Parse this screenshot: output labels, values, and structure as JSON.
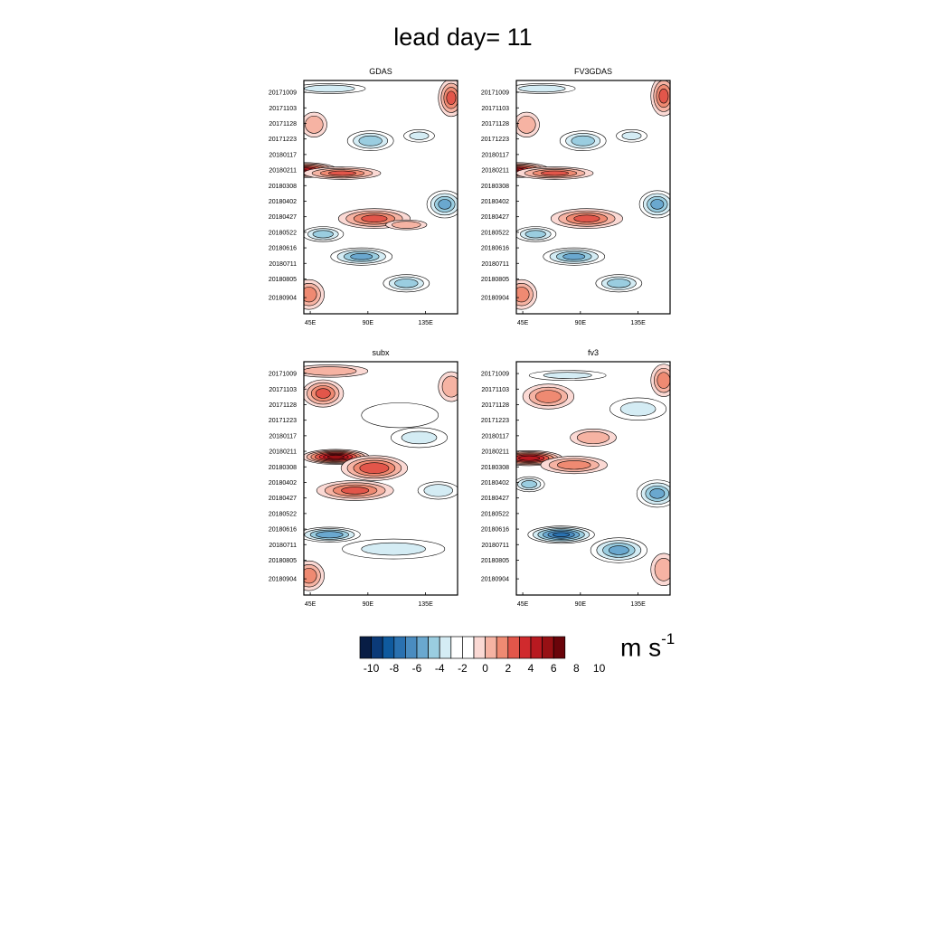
{
  "title": "lead day= 11",
  "units": {
    "base": "m s",
    "exponent": "-1"
  },
  "chart_data": [
    {
      "type": "heatmap",
      "title": "GDAS",
      "x_ticks": [
        "45E",
        "90E",
        "135E"
      ],
      "x_tick_values": [
        45,
        90,
        135
      ],
      "xlim": [
        40,
        160
      ],
      "y_ticks": [
        "20171009",
        "20171103",
        "20171128",
        "20171223",
        "20180117",
        "20180211",
        "20180308",
        "20180402",
        "20180427",
        "20180522",
        "20180616",
        "20180711",
        "20180805",
        "20180904"
      ],
      "ylim": [
        "20170920",
        "20180930"
      ],
      "features": [
        {
          "lon": 40,
          "date": "20180211",
          "value": 9.5,
          "lon_width": 26,
          "day_width": 12
        },
        {
          "lon": 70,
          "date": "20180216",
          "value": 6,
          "lon_width": 30,
          "day_width": 10
        },
        {
          "lon": 95,
          "date": "20180430",
          "value": 6,
          "lon_width": 28,
          "day_width": 16
        },
        {
          "lon": 120,
          "date": "20180510",
          "value": 4,
          "lon_width": 16,
          "day_width": 8
        },
        {
          "lon": 155,
          "date": "20171018",
          "value": 6,
          "lon_width": 10,
          "day_width": 30
        },
        {
          "lon": 48,
          "date": "20171130",
          "value": 4,
          "lon_width": 10,
          "day_width": 20
        },
        {
          "lon": 44,
          "date": "20180830",
          "value": 5,
          "lon_width": 12,
          "day_width": 24
        },
        {
          "lon": 60,
          "date": "20171003",
          "value": -4,
          "lon_width": 28,
          "day_width": 8
        },
        {
          "lon": 92,
          "date": "20171226",
          "value": -5,
          "lon_width": 18,
          "day_width": 16
        },
        {
          "lon": 150,
          "date": "20180407",
          "value": -6,
          "lon_width": 14,
          "day_width": 22
        },
        {
          "lon": 55,
          "date": "20180525",
          "value": -5,
          "lon_width": 16,
          "day_width": 12
        },
        {
          "lon": 85,
          "date": "20180630",
          "value": -6,
          "lon_width": 24,
          "day_width": 14
        },
        {
          "lon": 120,
          "date": "20180812",
          "value": -5,
          "lon_width": 18,
          "day_width": 14
        },
        {
          "lon": 130,
          "date": "20171218",
          "value": -3,
          "lon_width": 12,
          "day_width": 10
        }
      ]
    },
    {
      "type": "heatmap",
      "title": "FV3GDAS",
      "x_ticks": [
        "45E",
        "90E",
        "135E"
      ],
      "x_tick_values": [
        45,
        90,
        135
      ],
      "xlim": [
        40,
        160
      ],
      "y_ticks": [
        "20171009",
        "20171103",
        "20171128",
        "20171223",
        "20180117",
        "20180211",
        "20180308",
        "20180402",
        "20180427",
        "20180522",
        "20180616",
        "20180711",
        "20180805",
        "20180904"
      ],
      "ylim": [
        "20170920",
        "20180930"
      ],
      "features": [
        {
          "lon": 40,
          "date": "20180211",
          "value": 9,
          "lon_width": 26,
          "day_width": 12
        },
        {
          "lon": 70,
          "date": "20180216",
          "value": 6,
          "lon_width": 30,
          "day_width": 10
        },
        {
          "lon": 95,
          "date": "20180430",
          "value": 6,
          "lon_width": 28,
          "day_width": 16
        },
        {
          "lon": 155,
          "date": "20171015",
          "value": 6,
          "lon_width": 10,
          "day_width": 32
        },
        {
          "lon": 48,
          "date": "20171130",
          "value": 4,
          "lon_width": 10,
          "day_width": 20
        },
        {
          "lon": 44,
          "date": "20180830",
          "value": 5,
          "lon_width": 12,
          "day_width": 24
        },
        {
          "lon": 60,
          "date": "20171003",
          "value": -4,
          "lon_width": 26,
          "day_width": 8
        },
        {
          "lon": 92,
          "date": "20171226",
          "value": -5,
          "lon_width": 18,
          "day_width": 16
        },
        {
          "lon": 150,
          "date": "20180407",
          "value": -6,
          "lon_width": 14,
          "day_width": 22
        },
        {
          "lon": 55,
          "date": "20180525",
          "value": -5,
          "lon_width": 16,
          "day_width": 12
        },
        {
          "lon": 85,
          "date": "20180630",
          "value": -6,
          "lon_width": 24,
          "day_width": 14
        },
        {
          "lon": 120,
          "date": "20180812",
          "value": -5,
          "lon_width": 18,
          "day_width": 14
        },
        {
          "lon": 130,
          "date": "20171218",
          "value": -3,
          "lon_width": 12,
          "day_width": 10
        }
      ]
    },
    {
      "type": "heatmap",
      "title": "subx",
      "x_ticks": [
        "45E",
        "90E",
        "135E"
      ],
      "x_tick_values": [
        45,
        90,
        135
      ],
      "xlim": [
        40,
        160
      ],
      "y_ticks": [
        "20171009",
        "20171103",
        "20171128",
        "20171223",
        "20180117",
        "20180211",
        "20180308",
        "20180402",
        "20180427",
        "20180522",
        "20180616",
        "20180711",
        "20180805",
        "20180904"
      ],
      "ylim": [
        "20170920",
        "20180930"
      ],
      "features": [
        {
          "lon": 65,
          "date": "20180220",
          "value": 11,
          "lon_width": 26,
          "day_width": 12
        },
        {
          "lon": 95,
          "date": "20180310",
          "value": 7,
          "lon_width": 26,
          "day_width": 20
        },
        {
          "lon": 80,
          "date": "20180415",
          "value": 6,
          "lon_width": 30,
          "day_width": 16
        },
        {
          "lon": 55,
          "date": "20171110",
          "value": 6,
          "lon_width": 16,
          "day_width": 22
        },
        {
          "lon": 60,
          "date": "20171005",
          "value": 4,
          "lon_width": 30,
          "day_width": 10
        },
        {
          "lon": 155,
          "date": "20171030",
          "value": 4,
          "lon_width": 10,
          "day_width": 24
        },
        {
          "lon": 44,
          "date": "20180830",
          "value": 5,
          "lon_width": 12,
          "day_width": 24
        },
        {
          "lon": 115,
          "date": "20171215",
          "value": -2.5,
          "lon_width": 30,
          "day_width": 20
        },
        {
          "lon": 130,
          "date": "20180120",
          "value": -3,
          "lon_width": 22,
          "day_width": 16
        },
        {
          "lon": 145,
          "date": "20180415",
          "value": -4,
          "lon_width": 16,
          "day_width": 14
        },
        {
          "lon": 60,
          "date": "20180625",
          "value": -7,
          "lon_width": 24,
          "day_width": 12
        },
        {
          "lon": 110,
          "date": "20180718",
          "value": -3,
          "lon_width": 40,
          "day_width": 16
        }
      ]
    },
    {
      "type": "heatmap",
      "title": "fv3",
      "x_ticks": [
        "45E",
        "90E",
        "135E"
      ],
      "x_tick_values": [
        45,
        90,
        135
      ],
      "xlim": [
        40,
        160
      ],
      "y_ticks": [
        "20171009",
        "20171103",
        "20171128",
        "20171223",
        "20180117",
        "20180211",
        "20180308",
        "20180402",
        "20180427",
        "20180522",
        "20180616",
        "20180711",
        "20180805",
        "20180904"
      ],
      "ylim": [
        "20170920",
        "20180930"
      ],
      "features": [
        {
          "lon": 50,
          "date": "20180222",
          "value": 10,
          "lon_width": 26,
          "day_width": 12
        },
        {
          "lon": 85,
          "date": "20180305",
          "value": 5,
          "lon_width": 26,
          "day_width": 14
        },
        {
          "lon": 65,
          "date": "20171115",
          "value": 5,
          "lon_width": 20,
          "day_width": 20
        },
        {
          "lon": 100,
          "date": "20180120",
          "value": 4,
          "lon_width": 18,
          "day_width": 14
        },
        {
          "lon": 155,
          "date": "20171020",
          "value": 5,
          "lon_width": 10,
          "day_width": 26
        },
        {
          "lon": 155,
          "date": "20180820",
          "value": 4,
          "lon_width": 10,
          "day_width": 26
        },
        {
          "lon": 80,
          "date": "20171012",
          "value": -3,
          "lon_width": 30,
          "day_width": 8
        },
        {
          "lon": 135,
          "date": "20171205",
          "value": -3,
          "lon_width": 22,
          "day_width": 18
        },
        {
          "lon": 150,
          "date": "20180420",
          "value": -6,
          "lon_width": 16,
          "day_width": 22
        },
        {
          "lon": 50,
          "date": "20180405",
          "value": -5,
          "lon_width": 12,
          "day_width": 12
        },
        {
          "lon": 75,
          "date": "20180625",
          "value": -9,
          "lon_width": 26,
          "day_width": 14
        },
        {
          "lon": 120,
          "date": "20180720",
          "value": -6,
          "lon_width": 22,
          "day_width": 20
        }
      ]
    }
  ],
  "colorbar": {
    "labels": [
      "-10",
      "-8",
      "-6",
      "-4",
      "-2",
      "0",
      "2",
      "4",
      "6",
      "8",
      "10"
    ],
    "colors": [
      "#081d45",
      "#0b3a78",
      "#0f5a9e",
      "#2a71b0",
      "#4a8cc0",
      "#6aa8cf",
      "#9acde0",
      "#d4ecf4",
      "#ffffff",
      "#ffffff",
      "#fbd9d4",
      "#f6b3a3",
      "#ef8a72",
      "#e2564a",
      "#d02a2d",
      "#b81920",
      "#971014",
      "#6a040a"
    ]
  }
}
